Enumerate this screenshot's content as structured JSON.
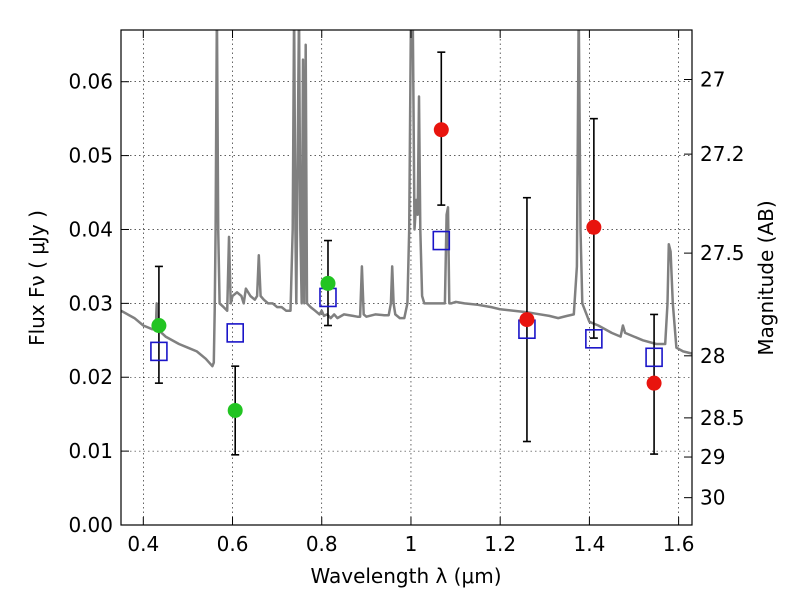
{
  "chart_data": {
    "type": "scatter",
    "xlabel": "Wavelength  λ (μm)",
    "ylabel_left": "Flux  Fν  ( μJy )",
    "ylabel_right": "Magnitude (AB)",
    "xlim": [
      0.35,
      1.63
    ],
    "ylim": [
      0.0,
      0.067
    ],
    "grid": true,
    "x_ticks": [
      {
        "value": 0.4,
        "label": "0.4"
      },
      {
        "value": 0.6,
        "label": "0.6"
      },
      {
        "value": 0.8,
        "label": "0.8"
      },
      {
        "value": 1.0,
        "label": "1"
      },
      {
        "value": 1.2,
        "label": "1.2"
      },
      {
        "value": 1.4,
        "label": "1.4"
      },
      {
        "value": 1.6,
        "label": "1.6"
      }
    ],
    "y_ticks_left": [
      {
        "value": 0.0,
        "label": "0.00"
      },
      {
        "value": 0.01,
        "label": "0.01"
      },
      {
        "value": 0.02,
        "label": "0.02"
      },
      {
        "value": 0.03,
        "label": "0.03"
      },
      {
        "value": 0.04,
        "label": "0.04"
      },
      {
        "value": 0.05,
        "label": "0.05"
      },
      {
        "value": 0.06,
        "label": "0.06"
      }
    ],
    "y_ticks_right": [
      {
        "flux": 0.0603,
        "label": "27"
      },
      {
        "flux": 0.0502,
        "label": "27.2"
      },
      {
        "flux": 0.0368,
        "label": "27.5"
      },
      {
        "flux": 0.0229,
        "label": "28"
      },
      {
        "flux": 0.0145,
        "label": "28.5"
      },
      {
        "flux": 0.0092,
        "label": "29"
      },
      {
        "flux": 0.0037,
        "label": "30"
      }
    ],
    "series": [
      {
        "name": "green observations",
        "color": "#22c422",
        "marker": "circle",
        "points": [
          {
            "x": 0.435,
            "y": 0.027,
            "err_low": 0.0078,
            "err_high": 0.008
          },
          {
            "x": 0.606,
            "y": 0.0155,
            "err_low": 0.006,
            "err_high": 0.006
          },
          {
            "x": 0.814,
            "y": 0.0327,
            "err_low": 0.0057,
            "err_high": 0.0058
          }
        ]
      },
      {
        "name": "red observations",
        "color": "#e8140e",
        "marker": "circle",
        "points": [
          {
            "x": 1.068,
            "y": 0.0535,
            "err_low": 0.0102,
            "err_high": 0.0105
          },
          {
            "x": 1.26,
            "y": 0.0278,
            "err_low": 0.0165,
            "err_high": 0.0165
          },
          {
            "x": 1.41,
            "y": 0.0403,
            "err_low": 0.015,
            "err_high": 0.0147
          },
          {
            "x": 1.545,
            "y": 0.0192,
            "err_low": 0.0096,
            "err_high": 0.0093
          }
        ]
      },
      {
        "name": "model photometry",
        "color": "#1a14c8",
        "marker": "square",
        "points": [
          {
            "x": 0.435,
            "y": 0.0235
          },
          {
            "x": 0.606,
            "y": 0.026
          },
          {
            "x": 0.814,
            "y": 0.0308
          },
          {
            "x": 1.068,
            "y": 0.0385
          },
          {
            "x": 1.26,
            "y": 0.0265
          },
          {
            "x": 1.41,
            "y": 0.0252
          },
          {
            "x": 1.545,
            "y": 0.0227
          }
        ]
      }
    ],
    "spectrum": {
      "name": "model spectrum",
      "color": "#808080",
      "points": [
        [
          0.35,
          0.029
        ],
        [
          0.38,
          0.028
        ],
        [
          0.4,
          0.027
        ],
        [
          0.42,
          0.0265
        ],
        [
          0.428,
          0.0265
        ],
        [
          0.43,
          0.03
        ],
        [
          0.432,
          0.0265
        ],
        [
          0.45,
          0.0255
        ],
        [
          0.48,
          0.0245
        ],
        [
          0.5,
          0.024
        ],
        [
          0.52,
          0.0235
        ],
        [
          0.54,
          0.0225
        ],
        [
          0.555,
          0.0215
        ],
        [
          0.558,
          0.022
        ],
        [
          0.56,
          0.029
        ],
        [
          0.562,
          0.04
        ],
        [
          0.565,
          0.07
        ],
        [
          0.568,
          0.04
        ],
        [
          0.571,
          0.03
        ],
        [
          0.58,
          0.0295
        ],
        [
          0.588,
          0.029
        ],
        [
          0.592,
          0.039
        ],
        [
          0.596,
          0.03
        ],
        [
          0.6,
          0.031
        ],
        [
          0.61,
          0.0315
        ],
        [
          0.62,
          0.031
        ],
        [
          0.625,
          0.03
        ],
        [
          0.63,
          0.032
        ],
        [
          0.64,
          0.031
        ],
        [
          0.65,
          0.0305
        ],
        [
          0.655,
          0.031
        ],
        [
          0.659,
          0.0365
        ],
        [
          0.663,
          0.031
        ],
        [
          0.67,
          0.0305
        ],
        [
          0.68,
          0.03
        ],
        [
          0.69,
          0.03
        ],
        [
          0.7,
          0.0295
        ],
        [
          0.71,
          0.0295
        ],
        [
          0.72,
          0.029
        ],
        [
          0.73,
          0.029
        ],
        [
          0.735,
          0.04
        ],
        [
          0.738,
          0.07
        ],
        [
          0.741,
          0.04
        ],
        [
          0.743,
          0.03
        ],
        [
          0.746,
          0.05
        ],
        [
          0.749,
          0.07
        ],
        [
          0.752,
          0.04
        ],
        [
          0.755,
          0.03
        ],
        [
          0.758,
          0.063
        ],
        [
          0.761,
          0.03
        ],
        [
          0.764,
          0.065
        ],
        [
          0.767,
          0.03
        ],
        [
          0.775,
          0.0295
        ],
        [
          0.785,
          0.029
        ],
        [
          0.795,
          0.0285
        ],
        [
          0.8,
          0.029
        ],
        [
          0.805,
          0.0283
        ],
        [
          0.812,
          0.0285
        ],
        [
          0.82,
          0.028
        ],
        [
          0.828,
          0.0285
        ],
        [
          0.835,
          0.028
        ],
        [
          0.85,
          0.0285
        ],
        [
          0.87,
          0.0283
        ],
        [
          0.88,
          0.0282
        ],
        [
          0.886,
          0.0282
        ],
        [
          0.89,
          0.035
        ],
        [
          0.894,
          0.0285
        ],
        [
          0.9,
          0.0282
        ],
        [
          0.92,
          0.0285
        ],
        [
          0.94,
          0.0284
        ],
        [
          0.95,
          0.0284
        ],
        [
          0.955,
          0.03
        ],
        [
          0.958,
          0.035
        ],
        [
          0.961,
          0.03
        ],
        [
          0.965,
          0.0285
        ],
        [
          0.975,
          0.028
        ],
        [
          0.985,
          0.028
        ],
        [
          0.992,
          0.03
        ],
        [
          0.996,
          0.04
        ],
        [
          1.0,
          0.07
        ],
        [
          1.004,
          0.07
        ],
        [
          1.008,
          0.04
        ],
        [
          1.012,
          0.044
        ],
        [
          1.015,
          0.042
        ],
        [
          1.018,
          0.058
        ],
        [
          1.021,
          0.04
        ],
        [
          1.025,
          0.031
        ],
        [
          1.03,
          0.03
        ],
        [
          1.04,
          0.03
        ],
        [
          1.055,
          0.03
        ],
        [
          1.07,
          0.03
        ],
        [
          1.076,
          0.03
        ],
        [
          1.08,
          0.042
        ],
        [
          1.083,
          0.043
        ],
        [
          1.086,
          0.03
        ],
        [
          1.09,
          0.03
        ],
        [
          1.1,
          0.0302
        ],
        [
          1.12,
          0.03
        ],
        [
          1.15,
          0.0298
        ],
        [
          1.18,
          0.0295
        ],
        [
          1.2,
          0.0292
        ],
        [
          1.23,
          0.029
        ],
        [
          1.26,
          0.0288
        ],
        [
          1.28,
          0.0286
        ],
        [
          1.31,
          0.0283
        ],
        [
          1.33,
          0.028
        ],
        [
          1.35,
          0.0283
        ],
        [
          1.365,
          0.0285
        ],
        [
          1.372,
          0.035
        ],
        [
          1.376,
          0.07
        ],
        [
          1.38,
          0.04
        ],
        [
          1.384,
          0.03
        ],
        [
          1.4,
          0.0275
        ],
        [
          1.42,
          0.027
        ],
        [
          1.45,
          0.026
        ],
        [
          1.47,
          0.0255
        ],
        [
          1.475,
          0.027
        ],
        [
          1.48,
          0.026
        ],
        [
          1.5,
          0.0255
        ],
        [
          1.52,
          0.025
        ],
        [
          1.55,
          0.0245
        ],
        [
          1.57,
          0.0245
        ],
        [
          1.575,
          0.03
        ],
        [
          1.578,
          0.038
        ],
        [
          1.582,
          0.037
        ],
        [
          1.587,
          0.03
        ],
        [
          1.595,
          0.024
        ],
        [
          1.61,
          0.0235
        ],
        [
          1.63,
          0.0232
        ]
      ]
    }
  }
}
